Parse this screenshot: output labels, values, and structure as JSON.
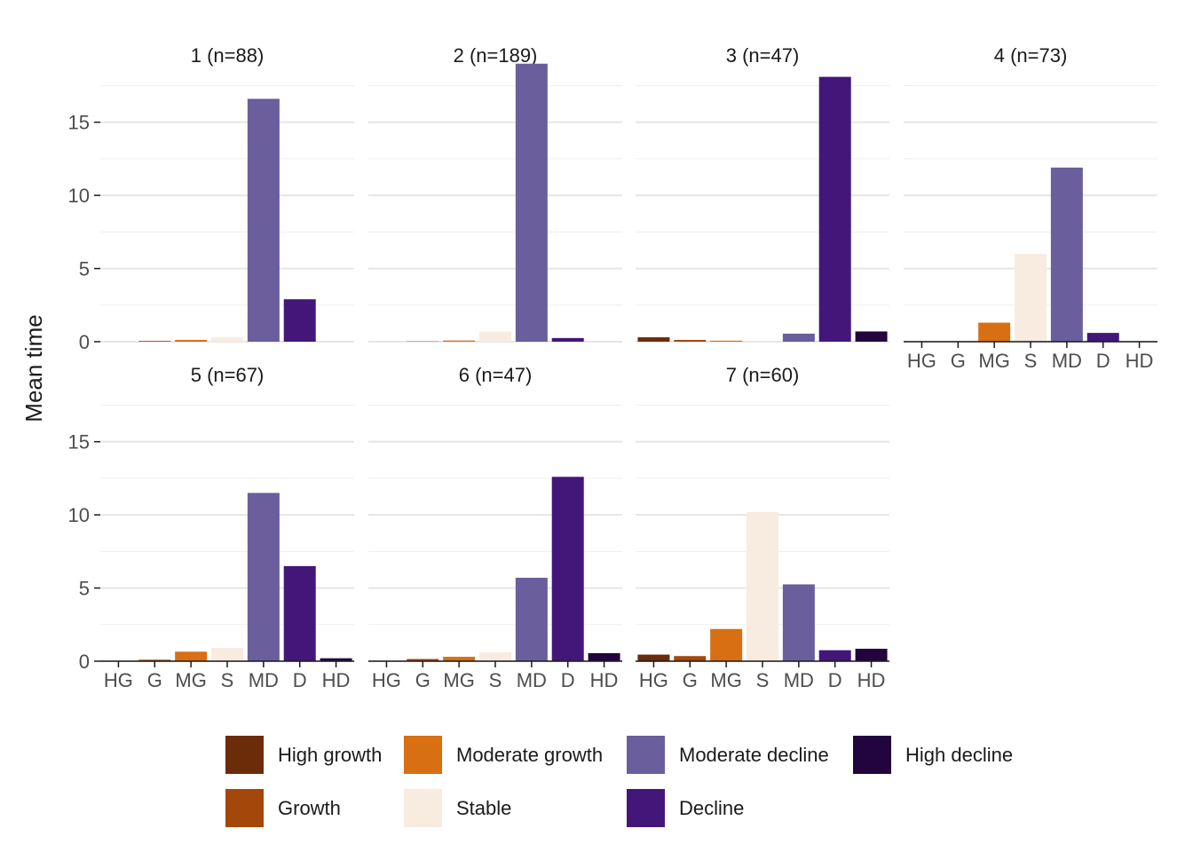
{
  "chart_data": {
    "type": "bar",
    "ylabel": "Mean time",
    "ylim": [
      0,
      18.5
    ],
    "yticks": [
      0,
      5,
      10,
      15
    ],
    "categories": [
      "HG",
      "G",
      "MG",
      "S",
      "MD",
      "D",
      "HD"
    ],
    "legend": {
      "placement": "bottom",
      "items": [
        {
          "label": "High growth",
          "color": "#6b2c0a"
        },
        {
          "label": "Growth",
          "color": "#a3470b"
        },
        {
          "label": "Moderate growth",
          "color": "#d86f13"
        },
        {
          "label": "Stable",
          "color": "#f8ebe0"
        },
        {
          "label": "Moderate decline",
          "color": "#6b5e9c"
        },
        {
          "label": "Decline",
          "color": "#43177a"
        },
        {
          "label": "High decline",
          "color": "#22053f"
        }
      ]
    },
    "panels": [
      {
        "title": "1 (n=88)",
        "values": [
          0.0,
          0.05,
          0.12,
          0.3,
          16.6,
          2.9,
          0.0
        ]
      },
      {
        "title": "2 (n=189)",
        "values": [
          0.0,
          0.02,
          0.08,
          0.7,
          19.0,
          0.25,
          0.0
        ]
      },
      {
        "title": "3 (n=47)",
        "values": [
          0.3,
          0.12,
          0.07,
          0.03,
          0.55,
          18.1,
          0.7
        ]
      },
      {
        "title": "4 (n=73)",
        "values": [
          0.0,
          0.0,
          1.3,
          6.0,
          11.9,
          0.6,
          0.0
        ]
      },
      {
        "title": "5 (n=67)",
        "values": [
          0.0,
          0.1,
          0.65,
          0.9,
          11.5,
          6.5,
          0.2
        ]
      },
      {
        "title": "6 (n=47)",
        "values": [
          0.0,
          0.15,
          0.3,
          0.6,
          5.7,
          12.6,
          0.55
        ]
      },
      {
        "title": "7 (n=60)",
        "values": [
          0.45,
          0.35,
          2.2,
          10.2,
          5.25,
          0.75,
          0.85
        ]
      }
    ]
  }
}
